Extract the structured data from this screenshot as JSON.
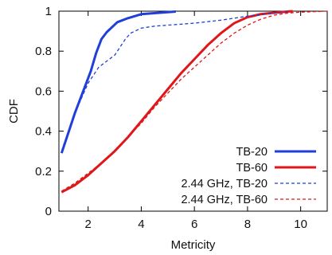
{
  "chart_data": {
    "type": "line",
    "xlabel": "Metricity",
    "ylabel": "CDF",
    "xlim": [
      0.9,
      11
    ],
    "ylim": [
      0,
      1
    ],
    "x_ticks": [
      2,
      4,
      6,
      8,
      10
    ],
    "y_ticks": [
      0,
      0.2,
      0.4,
      0.6,
      0.8,
      1
    ],
    "x_tick_labels": [
      "2",
      "4",
      "6",
      "8",
      "10"
    ],
    "y_tick_labels": [
      "0",
      "0.2",
      "0.4",
      "0.6",
      "0.8",
      "1"
    ],
    "grid": false,
    "legend_position": "bottom-right",
    "series": [
      {
        "name": "TB-20",
        "color": "#1f3fd8",
        "style": "solid",
        "x": [
          1.0,
          1.1,
          1.3,
          1.5,
          1.7,
          1.9,
          2.1,
          2.3,
          2.5,
          2.7,
          2.9,
          3.1,
          3.5,
          4.0,
          4.5,
          5.0,
          5.3
        ],
        "y": [
          0.29,
          0.33,
          0.41,
          0.49,
          0.56,
          0.63,
          0.7,
          0.79,
          0.86,
          0.895,
          0.92,
          0.945,
          0.965,
          0.985,
          0.99,
          0.995,
          0.998
        ]
      },
      {
        "name": "TB-60",
        "color": "#e0161a",
        "style": "solid",
        "x": [
          1.0,
          1.5,
          2.0,
          2.5,
          3.0,
          3.5,
          4.0,
          4.5,
          5.0,
          5.5,
          6.0,
          6.5,
          7.0,
          7.5,
          8.0,
          8.5,
          9.0,
          9.5,
          9.7
        ],
        "y": [
          0.095,
          0.13,
          0.18,
          0.24,
          0.3,
          0.37,
          0.45,
          0.53,
          0.61,
          0.69,
          0.76,
          0.83,
          0.89,
          0.94,
          0.97,
          0.985,
          0.992,
          0.998,
          1.0
        ]
      },
      {
        "name": "2.44 GHz, TB-20",
        "color": "#1f3fd8",
        "style": "dashed",
        "x": [
          1.0,
          1.2,
          1.4,
          1.6,
          1.8,
          2.0,
          2.2,
          2.4,
          2.6,
          2.8,
          3.0,
          3.2,
          3.4,
          3.6,
          4.0,
          4.5,
          5.0,
          6.0,
          7.0,
          8.0,
          9.0,
          9.5
        ],
        "y": [
          0.3,
          0.38,
          0.45,
          0.52,
          0.58,
          0.64,
          0.68,
          0.72,
          0.74,
          0.76,
          0.78,
          0.82,
          0.86,
          0.89,
          0.915,
          0.925,
          0.93,
          0.94,
          0.955,
          0.975,
          0.99,
          0.995
        ]
      },
      {
        "name": "2.44 GHz, TB-60",
        "color": "#e0161a",
        "style": "dashed",
        "x": [
          1.0,
          1.5,
          2.0,
          2.5,
          3.0,
          3.5,
          4.0,
          4.5,
          5.0,
          5.5,
          6.0,
          6.5,
          7.0,
          7.5,
          8.0,
          8.5,
          9.0,
          9.5,
          10.0,
          11.0
        ],
        "y": [
          0.1,
          0.14,
          0.19,
          0.24,
          0.3,
          0.37,
          0.44,
          0.52,
          0.59,
          0.66,
          0.72,
          0.78,
          0.84,
          0.89,
          0.93,
          0.96,
          0.98,
          0.99,
          0.995,
          1.0
        ]
      }
    ]
  }
}
